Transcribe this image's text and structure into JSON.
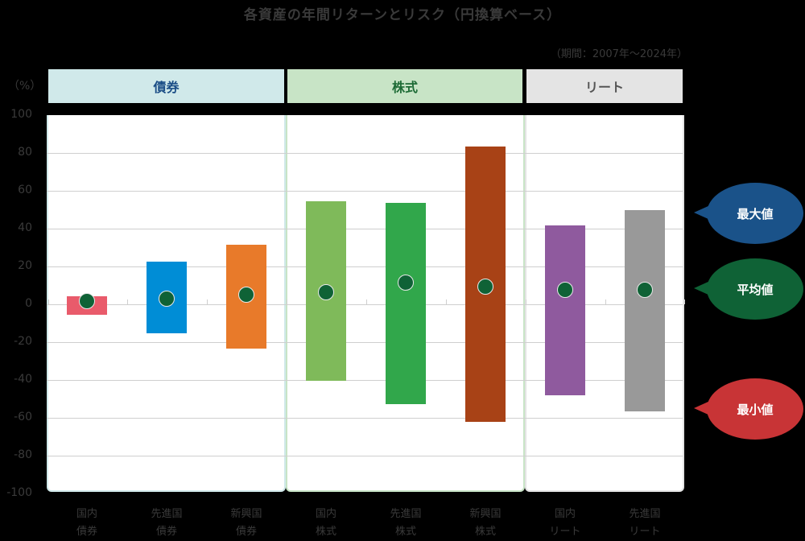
{
  "header": {
    "title": "各資産の年間リターンとリスク（円換算ベース）",
    "period": "（期間：2007年〜2024年）",
    "unit": "（%）"
  },
  "categories": [
    {
      "label": "債券",
      "bg": "#d0e9ea",
      "color": "#1a4d86",
      "border": "#d0e9ea"
    },
    {
      "label": "株式",
      "bg": "#c8e4c6",
      "color": "#1e6b36",
      "border": "#c8e4c6"
    },
    {
      "label": "リート",
      "bg": "#e4e4e4",
      "color": "#555555",
      "border": "#e4e4e4"
    }
  ],
  "legend": {
    "max_label": "最大値",
    "max_color": "#1a5289",
    "mean_label": "平均値",
    "mean_color": "#0f6236",
    "min_label": "最小値",
    "min_color": "#c83436"
  },
  "x_labels": [
    {
      "line1": "国内",
      "line2": "債券"
    },
    {
      "line1": "先進国",
      "line2": "債券"
    },
    {
      "line1": "新興国",
      "line2": "債券"
    },
    {
      "line1": "国内",
      "line2": "株式"
    },
    {
      "line1": "先進国",
      "line2": "株式"
    },
    {
      "line1": "新興国",
      "line2": "株式"
    },
    {
      "line1": "国内",
      "line2": "リート"
    },
    {
      "line1": "先進国",
      "line2": "リート"
    }
  ],
  "y_ticks": [
    "100",
    "80",
    "60",
    "40",
    "20",
    "0",
    "-20",
    "-40",
    "-60",
    "-80",
    "-100"
  ],
  "chart_data": {
    "type": "bar",
    "subtype": "floating range bar with mean marker",
    "title": "各資産の年間リターンとリスク（円換算ベース）",
    "subtitle": "（期間：2007年〜2024年）",
    "xlabel": "",
    "ylabel": "（%）",
    "ylim": [
      -100,
      100
    ],
    "y_ticks": [
      100,
      80,
      60,
      40,
      20,
      0,
      -20,
      -40,
      -60,
      -80,
      -100
    ],
    "grid": true,
    "groups": [
      {
        "name": "債券",
        "members": [
          "国内債券",
          "先進国債券",
          "新興国債券"
        ]
      },
      {
        "name": "株式",
        "members": [
          "国内株式",
          "先進国株式",
          "新興国株式"
        ]
      },
      {
        "name": "リート",
        "members": [
          "国内リート",
          "先進国リート"
        ]
      }
    ],
    "categories": [
      "国内債券",
      "先進国債券",
      "新興国債券",
      "国内株式",
      "先進国株式",
      "新興国株式",
      "国内リート",
      "先進国リート"
    ],
    "colors": [
      "#e95b6b",
      "#008dd6",
      "#e87a2a",
      "#7fba5a",
      "#31a74b",
      "#a84216",
      "#8f5a9e",
      "#999999"
    ],
    "series": [
      {
        "name": "最大値",
        "values": [
          4.3,
          22.6,
          31.5,
          54.5,
          53.6,
          83.4,
          41.7,
          49.8
        ]
      },
      {
        "name": "平均値",
        "values": [
          1.6,
          3.0,
          5.1,
          6.4,
          11.5,
          9.4,
          7.7,
          7.7
        ]
      },
      {
        "name": "最小値",
        "values": [
          -5.5,
          -15.3,
          -23.4,
          -40.4,
          -52.8,
          -62.1,
          -48.1,
          -56.6
        ]
      }
    ],
    "legend": [
      "最大値",
      "平均値",
      "最小値"
    ],
    "legend_position": "right"
  }
}
